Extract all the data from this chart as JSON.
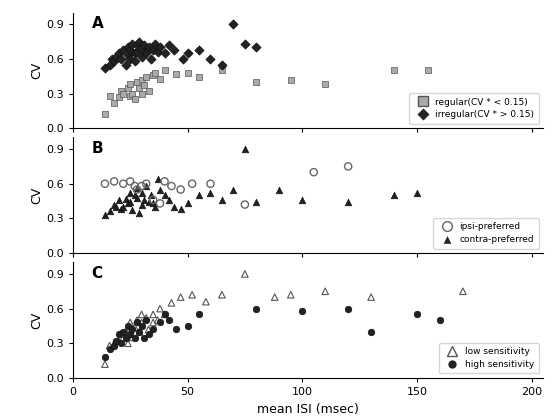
{
  "panel_A": {
    "label": "A",
    "regular_x": [
      14,
      16,
      18,
      20,
      21,
      22,
      24,
      25,
      25,
      26,
      27,
      28,
      29,
      30,
      30,
      31,
      32,
      33,
      35,
      36,
      38,
      40,
      45,
      50,
      55,
      65,
      80,
      95,
      110,
      140,
      155
    ],
    "regular_y": [
      0.12,
      0.28,
      0.22,
      0.27,
      0.32,
      0.3,
      0.35,
      0.28,
      0.38,
      0.3,
      0.25,
      0.4,
      0.35,
      0.42,
      0.3,
      0.37,
      0.44,
      0.32,
      0.46,
      0.48,
      0.43,
      0.5,
      0.47,
      0.48,
      0.44,
      0.5,
      0.4,
      0.42,
      0.38,
      0.5,
      0.5
    ],
    "irregular_x": [
      14,
      16,
      17,
      18,
      19,
      20,
      21,
      22,
      23,
      24,
      24,
      25,
      25,
      26,
      27,
      27,
      28,
      28,
      29,
      30,
      30,
      31,
      32,
      33,
      34,
      35,
      36,
      37,
      38,
      40,
      42,
      44,
      48,
      50,
      55,
      60,
      65,
      70,
      75,
      80
    ],
    "irregular_y": [
      0.52,
      0.55,
      0.6,
      0.58,
      0.62,
      0.65,
      0.6,
      0.68,
      0.55,
      0.63,
      0.7,
      0.6,
      0.68,
      0.73,
      0.65,
      0.58,
      0.66,
      0.72,
      0.75,
      0.62,
      0.68,
      0.72,
      0.65,
      0.7,
      0.6,
      0.68,
      0.73,
      0.66,
      0.7,
      0.65,
      0.72,
      0.68,
      0.6,
      0.65,
      0.68,
      0.6,
      0.55,
      0.9,
      0.73,
      0.7
    ],
    "legend1": "regular(CV * < 0.15)",
    "legend2": "irregular(CV * > 0.15)"
  },
  "panel_B": {
    "label": "B",
    "ipsi_x": [
      14,
      18,
      22,
      25,
      27,
      28,
      30,
      32,
      35,
      38,
      40,
      43,
      47,
      52,
      60,
      75,
      105,
      120
    ],
    "ipsi_y": [
      0.6,
      0.62,
      0.6,
      0.62,
      0.58,
      0.55,
      0.58,
      0.6,
      0.46,
      0.43,
      0.62,
      0.58,
      0.55,
      0.6,
      0.6,
      0.42,
      0.7,
      0.75
    ],
    "contra_x": [
      14,
      16,
      18,
      19,
      20,
      21,
      22,
      23,
      24,
      25,
      25,
      26,
      27,
      28,
      28,
      29,
      30,
      30,
      31,
      32,
      33,
      34,
      35,
      36,
      37,
      38,
      40,
      42,
      44,
      47,
      50,
      55,
      60,
      65,
      70,
      75,
      80,
      90,
      100,
      120,
      140,
      150
    ],
    "contra_y": [
      0.33,
      0.36,
      0.42,
      0.4,
      0.46,
      0.38,
      0.4,
      0.47,
      0.43,
      0.44,
      0.52,
      0.37,
      0.5,
      0.48,
      0.56,
      0.35,
      0.42,
      0.52,
      0.46,
      0.58,
      0.44,
      0.5,
      0.43,
      0.4,
      0.64,
      0.55,
      0.5,
      0.46,
      0.4,
      0.38,
      0.43,
      0.5,
      0.52,
      0.46,
      0.55,
      0.9,
      0.44,
      0.55,
      0.46,
      0.44,
      0.5,
      0.52
    ],
    "legend1": "ipsi-preferred",
    "legend2": "contra-preferred"
  },
  "panel_C": {
    "label": "C",
    "low_x": [
      14,
      16,
      18,
      20,
      21,
      22,
      23,
      24,
      25,
      25,
      26,
      27,
      28,
      29,
      30,
      30,
      32,
      33,
      35,
      35,
      37,
      38,
      40,
      43,
      47,
      52,
      58,
      65,
      75,
      88,
      95,
      110,
      130,
      170
    ],
    "low_y": [
      0.12,
      0.28,
      0.3,
      0.32,
      0.38,
      0.35,
      0.4,
      0.3,
      0.42,
      0.48,
      0.35,
      0.44,
      0.5,
      0.4,
      0.48,
      0.55,
      0.52,
      0.42,
      0.55,
      0.48,
      0.5,
      0.6,
      0.55,
      0.65,
      0.7,
      0.72,
      0.66,
      0.72,
      0.9,
      0.7,
      0.72,
      0.75,
      0.7,
      0.75
    ],
    "high_x": [
      14,
      16,
      18,
      19,
      20,
      21,
      22,
      23,
      24,
      25,
      26,
      27,
      28,
      29,
      30,
      31,
      32,
      33,
      35,
      38,
      40,
      42,
      45,
      50,
      55,
      80,
      100,
      120,
      130,
      150,
      160
    ],
    "high_y": [
      0.18,
      0.25,
      0.28,
      0.32,
      0.38,
      0.3,
      0.4,
      0.35,
      0.45,
      0.38,
      0.42,
      0.35,
      0.48,
      0.4,
      0.45,
      0.35,
      0.5,
      0.38,
      0.42,
      0.48,
      0.55,
      0.5,
      0.42,
      0.45,
      0.55,
      0.6,
      0.58,
      0.6,
      0.4,
      0.55,
      0.5
    ],
    "legend1": "low sensitivity",
    "legend2": "high sensitivity"
  },
  "xlim": [
    0,
    205
  ],
  "ylim": [
    0,
    1.0
  ],
  "yticks": [
    0,
    0.3,
    0.6,
    0.9
  ],
  "xticks": [
    0,
    50,
    100,
    150,
    200
  ],
  "xlabel": "mean ISI (msec)",
  "ylabel": "CV",
  "bg_color": "#ffffff",
  "regular_color": "#aaaaaa",
  "irregular_color": "#222222",
  "contra_color": "#222222",
  "high_color": "#222222"
}
